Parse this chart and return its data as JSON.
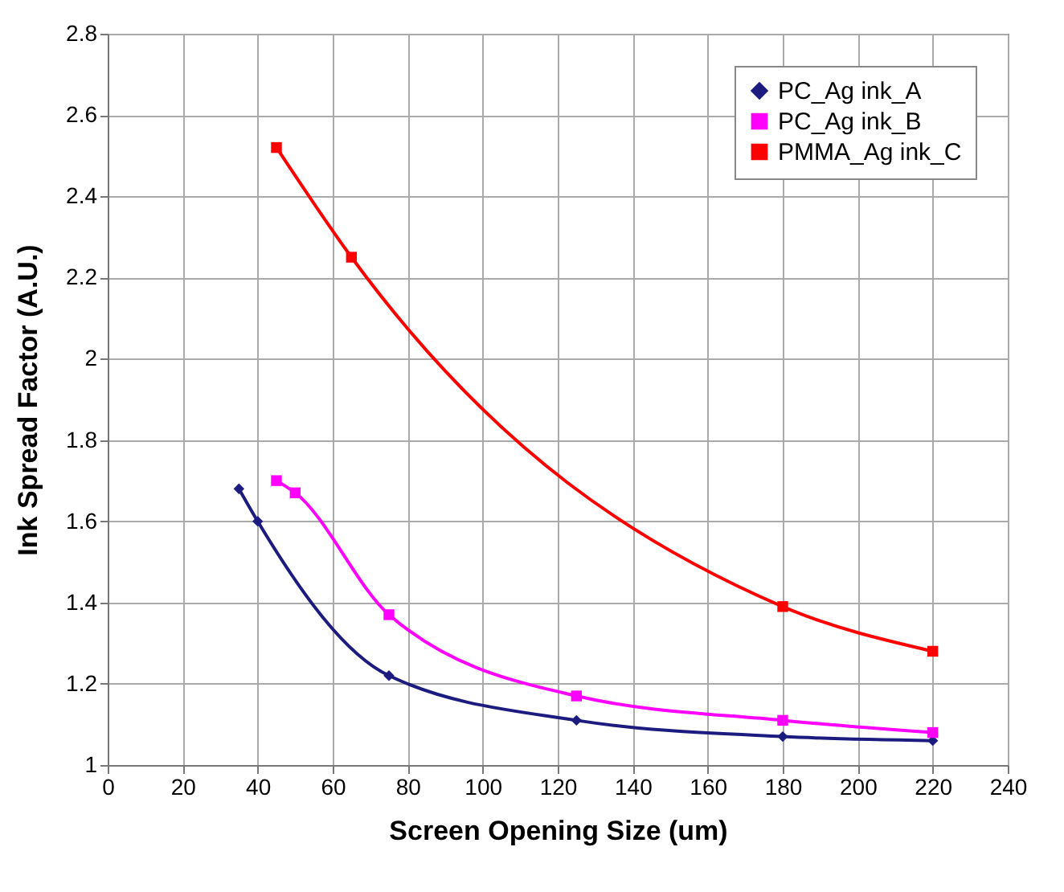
{
  "chart_data": {
    "type": "line",
    "xlabel": "Screen Opening Size (um)",
    "ylabel": "Ink Spread Factor (A.U.)",
    "xlim": [
      0,
      240
    ],
    "xticks": [
      0,
      20,
      40,
      60,
      80,
      100,
      120,
      140,
      160,
      180,
      200,
      220,
      240
    ],
    "ylim": [
      1,
      2.8
    ],
    "yticks": [
      1,
      1.2,
      1.4,
      1.6,
      1.8,
      2,
      2.2,
      2.4,
      2.6,
      2.8
    ],
    "grid": true,
    "legend": "top right",
    "line_style": "solid",
    "series": [
      {
        "name": "PC_Ag ink_A",
        "color": "#1c1c80",
        "marker": "diamond",
        "x": [
          35,
          40,
          75,
          125,
          180,
          220
        ],
        "values": [
          1.68,
          1.6,
          1.22,
          1.11,
          1.07,
          1.06
        ]
      },
      {
        "name": "PC_Ag ink_B",
        "color": "#ff00ff",
        "marker": "square",
        "x": [
          45,
          50,
          75,
          125,
          180,
          220
        ],
        "values": [
          1.7,
          1.67,
          1.37,
          1.17,
          1.11,
          1.08
        ]
      },
      {
        "name": "PMMA_Ag ink_C",
        "color": "#ff0000",
        "marker": "square",
        "x": [
          45,
          65,
          180,
          220
        ],
        "values": [
          2.52,
          2.25,
          1.39,
          1.28
        ]
      }
    ]
  }
}
